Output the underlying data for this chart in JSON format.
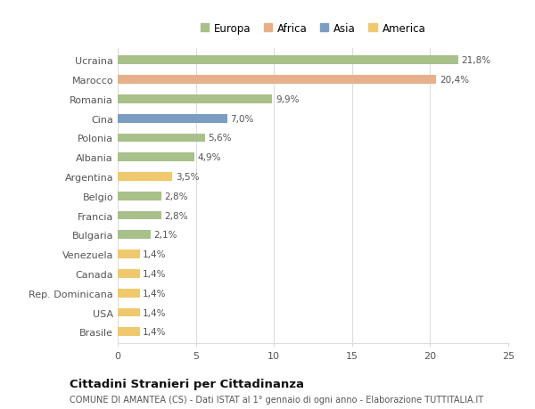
{
  "categories": [
    "Brasile",
    "USA",
    "Rep. Dominicana",
    "Canada",
    "Venezuela",
    "Bulgaria",
    "Francia",
    "Belgio",
    "Argentina",
    "Albania",
    "Polonia",
    "Cina",
    "Romania",
    "Marocco",
    "Ucraina"
  ],
  "values": [
    1.4,
    1.4,
    1.4,
    1.4,
    1.4,
    2.1,
    2.8,
    2.8,
    3.5,
    4.9,
    5.6,
    7.0,
    9.9,
    20.4,
    21.8
  ],
  "colors": [
    "#f0c96e",
    "#f0c96e",
    "#f0c96e",
    "#f0c96e",
    "#f0c96e",
    "#a8c08a",
    "#a8c08a",
    "#a8c08a",
    "#f0c96e",
    "#a8c08a",
    "#a8c08a",
    "#7b9dc2",
    "#a8c08a",
    "#e8b08a",
    "#a8c08a"
  ],
  "labels": [
    "1,4%",
    "1,4%",
    "1,4%",
    "1,4%",
    "1,4%",
    "2,1%",
    "2,8%",
    "2,8%",
    "3,5%",
    "4,9%",
    "5,6%",
    "7,0%",
    "9,9%",
    "20,4%",
    "21,8%"
  ],
  "xlim": [
    0,
    25
  ],
  "xticks": [
    0,
    5,
    10,
    15,
    20,
    25
  ],
  "legend_labels": [
    "Europa",
    "Africa",
    "Asia",
    "America"
  ],
  "legend_colors": [
    "#a8c08a",
    "#e8b08a",
    "#7b9dc2",
    "#f0c96e"
  ],
  "title": "Cittadini Stranieri per Cittadinanza",
  "subtitle": "COMUNE DI AMANTEA (CS) - Dati ISTAT al 1° gennaio di ogni anno - Elaborazione TUTTITALIA.IT",
  "bg_color": "#ffffff",
  "grid_color": "#dddddd",
  "bar_height": 0.45
}
